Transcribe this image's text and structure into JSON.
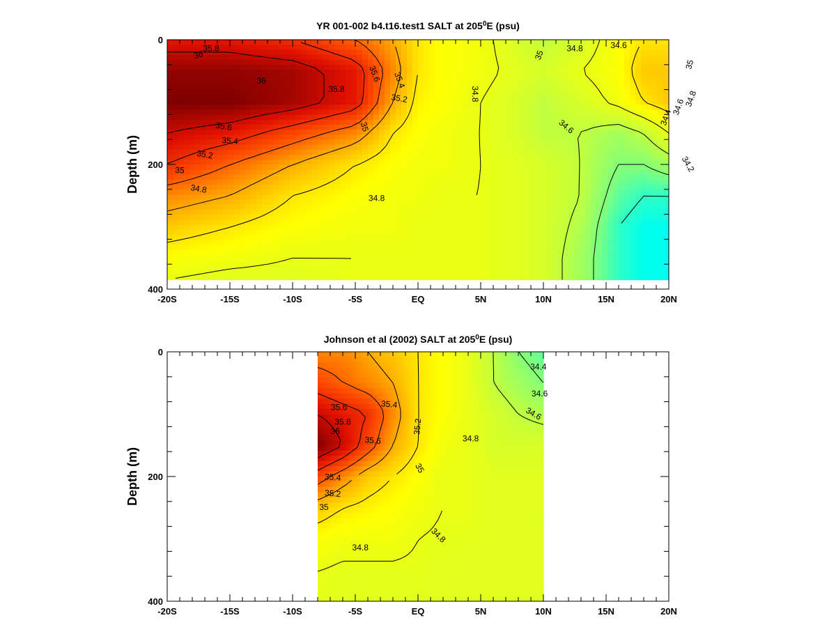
{
  "figure": {
    "colormap": [
      "#00ffee",
      "#7dff80",
      "#ccff33",
      "#ffff00",
      "#ffb000",
      "#ff5000",
      "#e01000",
      "#800000"
    ],
    "salinity_range": [
      34.1,
      36.0
    ]
  },
  "chart_data": [
    {
      "type": "heatmap",
      "title": "YR 001-002 b4.t16.test1 SALT at 205",
      "title_sup": "0",
      "title_suffix": "E (psu)",
      "ylabel": "Depth (m)",
      "xlabel": "",
      "xlim": [
        -20,
        20
      ],
      "ylim": [
        0,
        400
      ],
      "y_inverted": true,
      "data_extent_x": [
        -20,
        20
      ],
      "data_extent_y": [
        0,
        385
      ],
      "x_ticks": [
        -20,
        -15,
        -10,
        -5,
        0,
        5,
        10,
        15,
        20
      ],
      "x_tick_labels": [
        "-20S",
        "-15S",
        "-10S",
        "-5S",
        "EQ",
        "5N",
        "10N",
        "15N",
        "20N"
      ],
      "y_ticks": [
        0,
        200,
        400
      ],
      "y_tick_labels": [
        "0",
        "200",
        "400"
      ],
      "x": [
        -20,
        -15,
        -10,
        -5,
        -2,
        0,
        2,
        5,
        8,
        10,
        13,
        16,
        18,
        20
      ],
      "depth": [
        0,
        50,
        100,
        150,
        200,
        250,
        300,
        350,
        385
      ],
      "salinity": [
        [
          35.7,
          35.7,
          35.6,
          35.4,
          35.2,
          35.0,
          34.9,
          34.85,
          34.7,
          34.6,
          34.7,
          34.9,
          35.0,
          35.0
        ],
        [
          35.95,
          35.95,
          35.9,
          35.7,
          35.3,
          35.0,
          34.9,
          34.85,
          34.75,
          34.7,
          34.8,
          34.9,
          35.1,
          35.1
        ],
        [
          36.0,
          36.0,
          35.9,
          35.7,
          35.2,
          34.95,
          34.9,
          34.8,
          34.7,
          34.6,
          34.7,
          34.85,
          35.0,
          35.1
        ],
        [
          35.8,
          35.7,
          35.5,
          35.3,
          35.0,
          34.9,
          34.85,
          34.8,
          34.7,
          34.6,
          34.6,
          34.5,
          34.6,
          34.8
        ],
        [
          35.6,
          35.4,
          35.2,
          35.0,
          34.9,
          34.85,
          34.85,
          34.8,
          34.75,
          34.7,
          34.6,
          34.4,
          34.4,
          34.5
        ],
        [
          35.3,
          35.2,
          35.0,
          34.9,
          34.85,
          34.85,
          34.8,
          34.8,
          34.75,
          34.7,
          34.6,
          34.3,
          34.2,
          34.2
        ],
        [
          35.1,
          35.0,
          34.9,
          34.85,
          34.85,
          34.8,
          34.8,
          34.8,
          34.75,
          34.7,
          34.55,
          34.2,
          34.1,
          34.1
        ],
        [
          34.9,
          34.85,
          34.8,
          34.8,
          34.8,
          34.8,
          34.8,
          34.8,
          34.75,
          34.7,
          34.5,
          34.2,
          34.1,
          34.1
        ],
        [
          34.8,
          34.75,
          34.75,
          34.8,
          34.8,
          34.8,
          34.8,
          34.8,
          34.75,
          34.7,
          34.5,
          34.2,
          34.1,
          34.1
        ]
      ],
      "contour_labels": [
        {
          "text": "35.8",
          "x": -16.5,
          "y": 15,
          "angle": 0
        },
        {
          "text": "36",
          "x": -17.5,
          "y": 25,
          "angle": -15
        },
        {
          "text": "36",
          "x": -12.5,
          "y": 67,
          "angle": 0
        },
        {
          "text": "35.8",
          "x": -6.5,
          "y": 80,
          "angle": 0
        },
        {
          "text": "35.6",
          "x": -3.5,
          "y": 55,
          "angle": 70
        },
        {
          "text": "35.4",
          "x": -1.5,
          "y": 65,
          "angle": 70
        },
        {
          "text": "35.2",
          "x": -1.5,
          "y": 95,
          "angle": 10
        },
        {
          "text": "35",
          "x": -4.3,
          "y": 140,
          "angle": 75
        },
        {
          "text": "35.6",
          "x": -15.5,
          "y": 140,
          "angle": 10
        },
        {
          "text": "35.4",
          "x": -15,
          "y": 163,
          "angle": 5
        },
        {
          "text": "35.2",
          "x": -17,
          "y": 185,
          "angle": 10
        },
        {
          "text": "35",
          "x": -19,
          "y": 210,
          "angle": 5
        },
        {
          "text": "34.8",
          "x": -17.5,
          "y": 240,
          "angle": 10
        },
        {
          "text": "34.8",
          "x": -3.3,
          "y": 255,
          "angle": 0
        },
        {
          "text": "34.8",
          "x": 4.5,
          "y": 87,
          "angle": 90
        },
        {
          "text": "35",
          "x": 9.7,
          "y": 25,
          "angle": -70
        },
        {
          "text": "34.8",
          "x": 12.5,
          "y": 15,
          "angle": 0
        },
        {
          "text": "34.6",
          "x": 16,
          "y": 10,
          "angle": 0
        },
        {
          "text": "34.6",
          "x": 11.8,
          "y": 140,
          "angle": 40
        },
        {
          "text": "34.8",
          "x": 21.8,
          "y": 95,
          "angle": -70
        },
        {
          "text": "34.6",
          "x": 20.8,
          "y": 108,
          "angle": -70
        },
        {
          "text": "34.4",
          "x": 19.8,
          "y": 125,
          "angle": -70
        },
        {
          "text": "34.2",
          "x": 21.5,
          "y": 200,
          "angle": 60
        },
        {
          "text": "35",
          "x": 21.7,
          "y": 40,
          "angle": -75
        }
      ]
    },
    {
      "type": "heatmap",
      "title": "Johnson et al (2002) SALT at 205",
      "title_sup": "0",
      "title_suffix": "E (psu)",
      "ylabel": "Depth (m)",
      "xlabel": "",
      "xlim": [
        -20,
        20
      ],
      "ylim": [
        0,
        400
      ],
      "y_inverted": true,
      "data_extent_x": [
        -8,
        10
      ],
      "data_extent_y": [
        0,
        400
      ],
      "x_ticks": [
        -20,
        -15,
        -10,
        -5,
        0,
        5,
        10,
        15,
        20
      ],
      "x_tick_labels": [
        "-20S",
        "-15S",
        "-10S",
        "-5S",
        "EQ",
        "5N",
        "10N",
        "15N",
        "20N"
      ],
      "y_ticks": [
        0,
        200,
        400
      ],
      "y_tick_labels": [
        "0",
        "200",
        "400"
      ],
      "x": [
        -8,
        -6,
        -4,
        -2,
        0,
        2,
        4,
        6,
        8,
        10
      ],
      "depth": [
        0,
        50,
        100,
        150,
        200,
        250,
        300,
        350,
        400
      ],
      "salinity": [
        [
          35.3,
          35.3,
          35.2,
          35.1,
          35.0,
          34.9,
          34.8,
          34.6,
          34.4,
          34.3
        ],
        [
          35.5,
          35.4,
          35.3,
          35.2,
          35.0,
          34.9,
          34.8,
          34.6,
          34.5,
          34.4
        ],
        [
          35.8,
          35.7,
          35.6,
          35.3,
          35.0,
          34.9,
          34.8,
          34.7,
          34.6,
          34.55
        ],
        [
          36.0,
          35.8,
          35.5,
          35.2,
          35.0,
          34.85,
          34.8,
          34.7,
          34.7,
          34.7
        ],
        [
          35.5,
          35.3,
          35.1,
          35.0,
          34.9,
          34.8,
          34.8,
          34.75,
          34.75,
          34.75
        ],
        [
          35.1,
          35.0,
          34.95,
          34.9,
          34.85,
          34.8,
          34.8,
          34.75,
          34.75,
          34.75
        ],
        [
          34.9,
          34.85,
          34.85,
          34.85,
          34.8,
          34.78,
          34.78,
          34.75,
          34.75,
          34.75
        ],
        [
          34.8,
          34.78,
          34.78,
          34.78,
          34.78,
          34.76,
          34.75,
          34.75,
          34.75,
          34.75
        ],
        [
          34.78,
          34.76,
          34.76,
          34.76,
          34.76,
          34.75,
          34.75,
          34.75,
          34.75,
          34.75
        ]
      ],
      "contour_labels": [
        {
          "text": "35.6",
          "x": -6.3,
          "y": 90,
          "angle": 0
        },
        {
          "text": "35.8",
          "x": -6,
          "y": 113,
          "angle": 0
        },
        {
          "text": "36",
          "x": -6.6,
          "y": 128,
          "angle": 0
        },
        {
          "text": "35.6",
          "x": -3.6,
          "y": 143,
          "angle": 5
        },
        {
          "text": "35.4",
          "x": -2.3,
          "y": 85,
          "angle": 5
        },
        {
          "text": "35.2",
          "x": 0,
          "y": 120,
          "angle": -85
        },
        {
          "text": "35",
          "x": 0.1,
          "y": 187,
          "angle": 60
        },
        {
          "text": "34.8",
          "x": 4.2,
          "y": 140,
          "angle": 0
        },
        {
          "text": "34.6",
          "x": 9.7,
          "y": 68,
          "angle": 0
        },
        {
          "text": "34.4",
          "x": 9.6,
          "y": 25,
          "angle": 0
        },
        {
          "text": "34.6",
          "x": 9.2,
          "y": 100,
          "angle": 30
        },
        {
          "text": "35.4",
          "x": -6.8,
          "y": 202,
          "angle": 5
        },
        {
          "text": "35.2",
          "x": -6.8,
          "y": 228,
          "angle": 5
        },
        {
          "text": "35",
          "x": -7.5,
          "y": 250,
          "angle": 0
        },
        {
          "text": "34.8",
          "x": -4.6,
          "y": 315,
          "angle": 0
        },
        {
          "text": "34.8",
          "x": 1.6,
          "y": 295,
          "angle": 45
        }
      ]
    }
  ]
}
